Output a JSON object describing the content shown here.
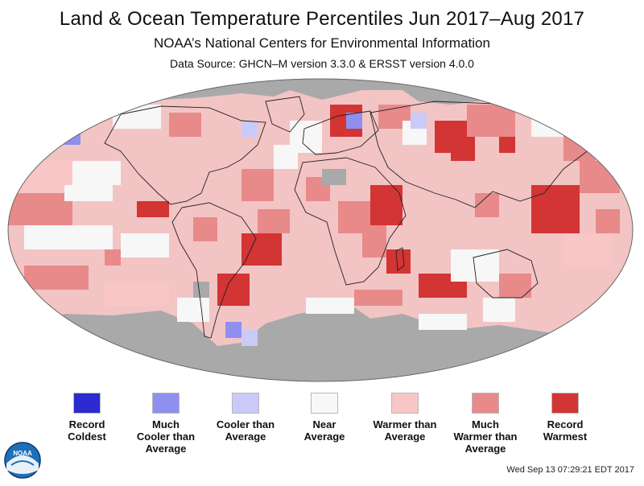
{
  "header": {
    "title": "Land & Ocean Temperature Percentiles Jun 2017–Aug 2017",
    "subtitle": "NOAA’s National Centers for Environmental Information",
    "source": "Data Source: GHCN–M version 3.3.0 & ERSST version 4.0.0"
  },
  "colors": {
    "no_data": "#a9a9a9",
    "record_coldest": "#2b2bd0",
    "much_cooler": "#8f8ff0",
    "cooler": "#cacaf8",
    "near_average": "#f7f7f7",
    "warmer": "#f8c6c6",
    "much_warmer": "#e88a8a",
    "record_warmest": "#d33434",
    "land_outline": "#222222",
    "map_background": "#f3c4c4"
  },
  "legend": [
    {
      "key": "record_coldest",
      "label": "Record\nColdest"
    },
    {
      "key": "much_cooler",
      "label": "Much\nCooler than\nAverage"
    },
    {
      "key": "cooler",
      "label": "Cooler than\nAverage"
    },
    {
      "key": "near_average",
      "label": "Near\nAverage"
    },
    {
      "key": "warmer",
      "label": "Warmer than\nAverage"
    },
    {
      "key": "much_warmer",
      "label": "Much\nWarmer than\nAverage"
    },
    {
      "key": "record_warmest",
      "label": "Record\nWarmest"
    }
  ],
  "logo": {
    "text": "NOAA",
    "icon": "noaa-logo-icon"
  },
  "footer": {
    "timestamp": "Wed Sep 13 07:29:21 EDT 2017"
  }
}
